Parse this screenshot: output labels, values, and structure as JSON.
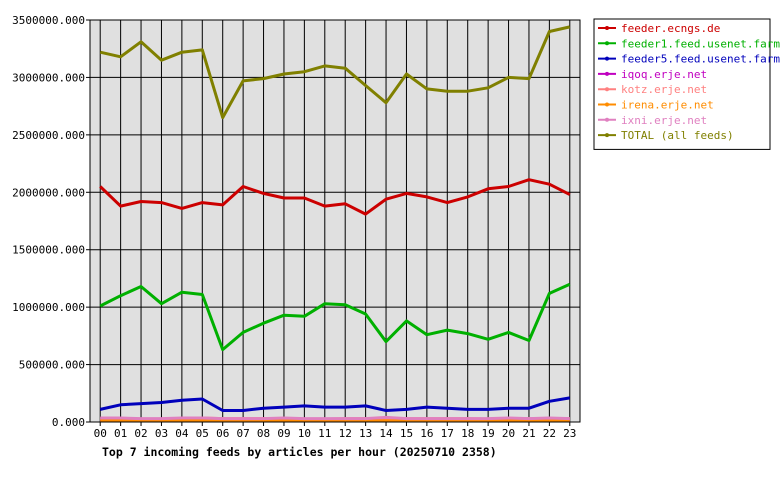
{
  "chart_data": {
    "type": "line",
    "title": "Top 7 incoming feeds by articles per hour (20250710 2358)",
    "xlabel": "",
    "ylabel": "",
    "categories": [
      "00",
      "01",
      "02",
      "03",
      "04",
      "05",
      "06",
      "07",
      "08",
      "09",
      "10",
      "11",
      "12",
      "13",
      "14",
      "15",
      "16",
      "17",
      "18",
      "19",
      "20",
      "21",
      "22",
      "23"
    ],
    "ylim": [
      0,
      3500000
    ],
    "yticks": [
      {
        "value": 0,
        "label": "0.000"
      },
      {
        "value": 500000,
        "label": "500000.000"
      },
      {
        "value": 1000000,
        "label": "1000000.000"
      },
      {
        "value": 1500000,
        "label": "1500000.000"
      },
      {
        "value": 2000000,
        "label": "2000000.000"
      },
      {
        "value": 2500000,
        "label": "2500000.000"
      },
      {
        "value": 3000000,
        "label": "3000000.000"
      },
      {
        "value": 3500000,
        "label": "3500000.000"
      }
    ],
    "grid": true,
    "legend_position": "right",
    "plot_background": "#e0e0e0",
    "series": [
      {
        "name": "feeder.ecngs.de",
        "color": "#cc0000",
        "values": [
          2050000,
          1880000,
          1920000,
          1910000,
          1860000,
          1910000,
          1890000,
          2050000,
          1990000,
          1950000,
          1950000,
          1880000,
          1900000,
          1810000,
          1940000,
          1990000,
          1960000,
          1910000,
          1960000,
          2030000,
          2050000,
          2110000,
          2070000,
          1980000
        ]
      },
      {
        "name": "feeder1.feed.usenet.farm",
        "color": "#00b000",
        "values": [
          1010000,
          1100000,
          1180000,
          1030000,
          1130000,
          1110000,
          630000,
          780000,
          860000,
          930000,
          920000,
          1030000,
          1020000,
          940000,
          700000,
          880000,
          760000,
          800000,
          770000,
          720000,
          780000,
          710000,
          1120000,
          1200000
        ]
      },
      {
        "name": "feeder5.feed.usenet.farm",
        "color": "#0000bb",
        "values": [
          110000,
          150000,
          160000,
          170000,
          190000,
          200000,
          100000,
          100000,
          120000,
          130000,
          140000,
          130000,
          130000,
          140000,
          100000,
          110000,
          130000,
          120000,
          110000,
          110000,
          120000,
          120000,
          180000,
          210000
        ]
      },
      {
        "name": "iqoq.erje.net",
        "color": "#c000c0",
        "values": [
          15000,
          15000,
          15000,
          15000,
          15000,
          15000,
          15000,
          15000,
          15000,
          15000,
          15000,
          15000,
          15000,
          15000,
          15000,
          15000,
          15000,
          15000,
          15000,
          15000,
          30000,
          15000,
          15000,
          15000
        ]
      },
      {
        "name": "kotz.erje.net",
        "color": "#ff8080",
        "values": [
          30000,
          30000,
          25000,
          25000,
          30000,
          35000,
          30000,
          30000,
          30000,
          30000,
          25000,
          25000,
          30000,
          30000,
          30000,
          30000,
          30000,
          30000,
          30000,
          25000,
          30000,
          30000,
          30000,
          30000
        ]
      },
      {
        "name": "irena.erje.net",
        "color": "#ff8c00",
        "values": [
          10000,
          10000,
          10000,
          10000,
          10000,
          10000,
          10000,
          10000,
          10000,
          10000,
          10000,
          10000,
          10000,
          10000,
          10000,
          10000,
          10000,
          10000,
          10000,
          10000,
          10000,
          10000,
          10000,
          10000
        ]
      },
      {
        "name": "ixni.erje.net",
        "color": "#e080c0",
        "values": [
          35000,
          35000,
          30000,
          30000,
          35000,
          35000,
          30000,
          30000,
          30000,
          35000,
          30000,
          30000,
          30000,
          30000,
          40000,
          30000,
          30000,
          30000,
          30000,
          30000,
          35000,
          30000,
          35000,
          30000
        ]
      },
      {
        "name": "TOTAL (all feeds)",
        "color": "#808000",
        "values": [
          3220000,
          3180000,
          3310000,
          3150000,
          3220000,
          3240000,
          2650000,
          2970000,
          2990000,
          3030000,
          3050000,
          3100000,
          3080000,
          2930000,
          2780000,
          3030000,
          2900000,
          2880000,
          2880000,
          2910000,
          3000000,
          2990000,
          3400000,
          3440000
        ]
      }
    ]
  }
}
